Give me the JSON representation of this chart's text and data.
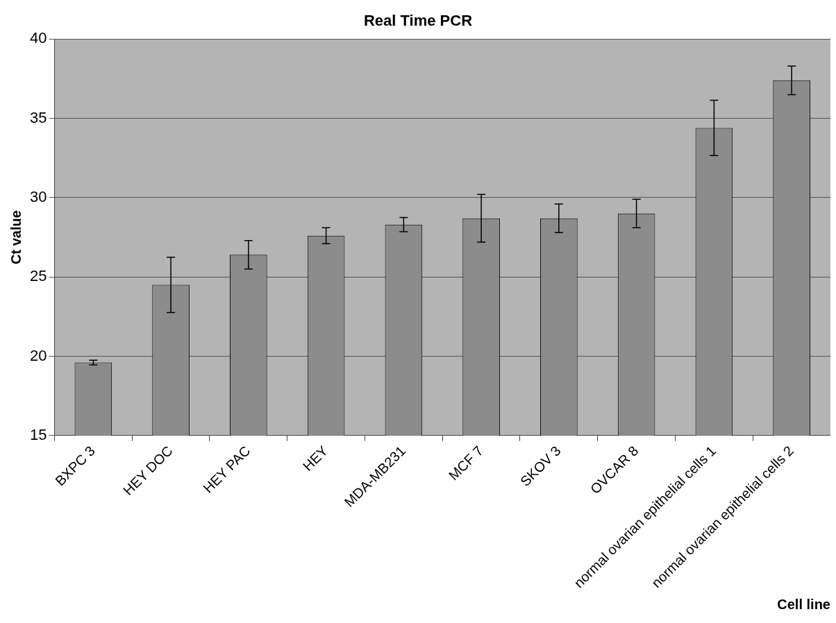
{
  "chart_data": {
    "type": "bar",
    "title": "Real Time PCR",
    "xlabel": "Cell line",
    "ylabel": "Ct value",
    "categories": [
      "BXPC 3",
      "HEY DOC",
      "HEY PAC",
      "HEY",
      "MDA-MB231",
      "MCF 7",
      "SKOV 3",
      "OVCAR 8",
      "normal ovarian epithelial cells 1",
      "normal ovarian epithelial cells 2"
    ],
    "values": [
      19.6,
      24.5,
      26.4,
      27.6,
      28.3,
      28.7,
      28.7,
      29.0,
      34.4,
      37.4
    ],
    "errors": [
      0.15,
      1.75,
      0.9,
      0.5,
      0.45,
      1.5,
      0.9,
      0.9,
      1.75,
      0.9
    ],
    "color": "#8c8c8c",
    "ylim": [
      15,
      40
    ],
    "yticks": [
      15,
      20,
      25,
      30,
      35,
      40
    ],
    "grid": "y",
    "legend": false
  }
}
